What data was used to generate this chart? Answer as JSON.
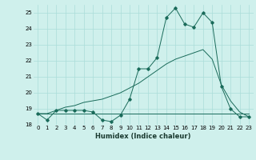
{
  "xlabel": "Humidex (Indice chaleur)",
  "background_color": "#cff0ec",
  "grid_color": "#aaddd8",
  "line_color": "#1a6b5a",
  "xlim": [
    -0.5,
    23.5
  ],
  "ylim": [
    18.0,
    25.5
  ],
  "yticks": [
    18,
    19,
    20,
    21,
    22,
    23,
    24,
    25
  ],
  "xticks": [
    0,
    1,
    2,
    3,
    4,
    5,
    6,
    7,
    8,
    9,
    10,
    11,
    12,
    13,
    14,
    15,
    16,
    17,
    18,
    19,
    20,
    21,
    22,
    23
  ],
  "series1_x": [
    0,
    1,
    2,
    3,
    4,
    5,
    6,
    7,
    8,
    9,
    10,
    11,
    12,
    13,
    14,
    15,
    16,
    17,
    18,
    19,
    20,
    21,
    22,
    23
  ],
  "series1_y": [
    18.7,
    18.3,
    18.9,
    18.9,
    18.9,
    18.9,
    18.8,
    18.3,
    18.2,
    18.6,
    19.6,
    21.5,
    21.5,
    22.2,
    24.7,
    25.3,
    24.3,
    24.1,
    25.0,
    24.4,
    20.4,
    19.0,
    18.5,
    18.5
  ],
  "series2_x": [
    0,
    1,
    2,
    3,
    4,
    5,
    6,
    7,
    8,
    9,
    10,
    11,
    12,
    13,
    14,
    15,
    16,
    17,
    18,
    19,
    20,
    21,
    22,
    23
  ],
  "series2_y": [
    18.7,
    18.7,
    18.9,
    19.1,
    19.2,
    19.4,
    19.5,
    19.6,
    19.8,
    20.0,
    20.3,
    20.6,
    21.0,
    21.4,
    21.8,
    22.1,
    22.3,
    22.5,
    22.7,
    22.1,
    20.5,
    19.5,
    18.8,
    18.5
  ],
  "series3_x": [
    0,
    1,
    2,
    3,
    4,
    5,
    6,
    7,
    8,
    9,
    10,
    11,
    12,
    13,
    14,
    15,
    16,
    17,
    18,
    19,
    20,
    21,
    22,
    23
  ],
  "series3_y": [
    18.7,
    18.7,
    18.7,
    18.7,
    18.7,
    18.7,
    18.7,
    18.7,
    18.7,
    18.7,
    18.7,
    18.7,
    18.7,
    18.7,
    18.7,
    18.7,
    18.7,
    18.7,
    18.7,
    18.7,
    18.7,
    18.7,
    18.7,
    18.7
  ]
}
